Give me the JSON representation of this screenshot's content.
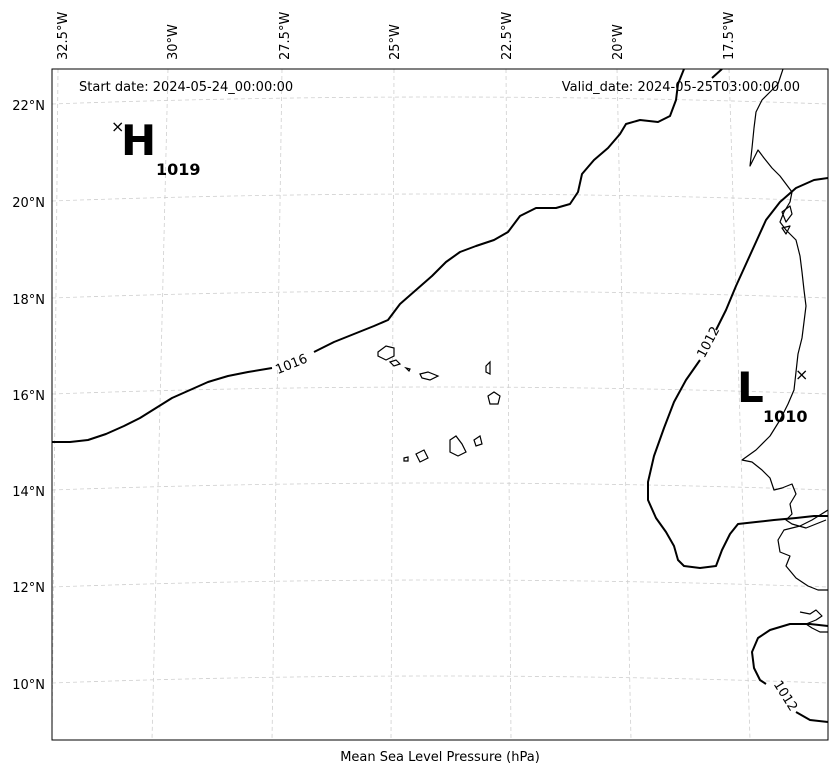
{
  "header": {
    "start_date": "Start date: 2024-05-24_00:00:00",
    "valid_date": "Valid_date: 2024-05-25T03:00:00.00"
  },
  "footer": {
    "xlabel": "Mean Sea Level Pressure (hPa)"
  },
  "axes": {
    "lon_labels": [
      "32.5°W",
      "30°W",
      "27.5°W",
      "25°W",
      "22.5°W",
      "20°W",
      "17.5°W"
    ],
    "lat_labels": [
      "22°N",
      "20°N",
      "18°N",
      "16°N",
      "14°N",
      "12°N",
      "10°N"
    ]
  },
  "pressure_centers": [
    {
      "type": "H",
      "value": "1019"
    },
    {
      "type": "L",
      "value": "1010"
    }
  ],
  "contour_labels": [
    "1016",
    "1012",
    "1012"
  ],
  "markers": {
    "center_symbol": "×"
  },
  "colors": {
    "isobar": "#000000",
    "grid": "#cfcfcf",
    "background": "#ffffff"
  }
}
